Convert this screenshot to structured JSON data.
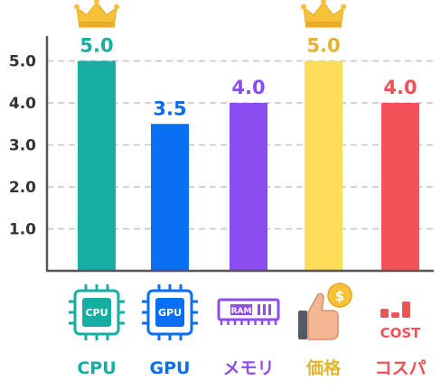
{
  "chart_data": {
    "type": "bar",
    "categories": [
      "CPU",
      "GPU",
      "メモリ",
      "価格",
      "コスパ"
    ],
    "values": [
      5.0,
      3.5,
      4.0,
      5.0,
      4.0
    ],
    "value_labels": [
      "5.0",
      "3.5",
      "4.0",
      "5.0",
      "4.0"
    ],
    "colors": [
      "#17ADA3",
      "#0A6EF0",
      "#8C4DF0",
      "#FDDC59",
      "#F25257"
    ],
    "label_colors": [
      "#17ADA3",
      "#0A6EF0",
      "#8C4DF0",
      "#E3B52E",
      "#F25257"
    ],
    "yticks": [
      "1.0",
      "2.0",
      "3.0",
      "4.0",
      "5.0"
    ],
    "ylim": [
      0,
      5.5
    ],
    "grid": true,
    "crowned": [
      "CPU",
      "価格"
    ],
    "icons": [
      "cpu-chip-icon",
      "gpu-chip-icon",
      "ram-module-icon",
      "thumbs-up-coin-icon",
      "cost-bars-icon"
    ],
    "icon_labels": [
      "CPU",
      "GPU",
      "RAM",
      "$",
      "COST"
    ]
  }
}
